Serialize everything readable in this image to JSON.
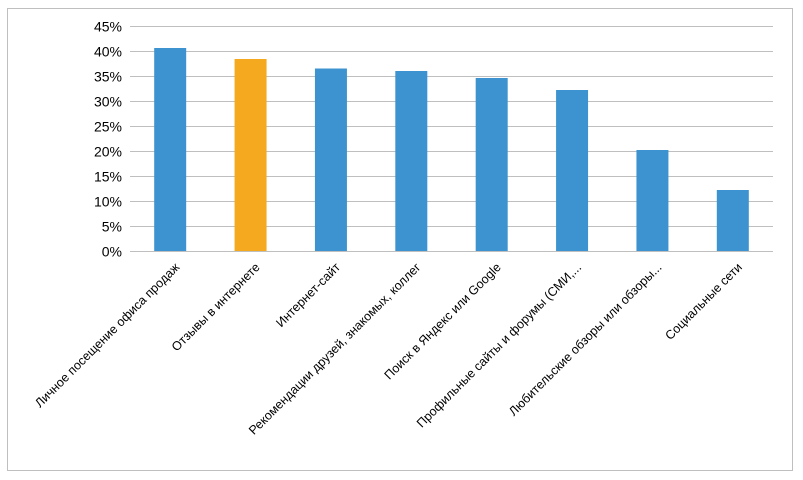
{
  "chart_data": {
    "type": "bar",
    "title": "",
    "xlabel": "",
    "ylabel": "",
    "ylim": [
      0,
      45
    ],
    "y_tick_step": 5,
    "y_tick_format": "percent",
    "grid": true,
    "legend": "none",
    "categories": [
      "Личное посещение офиса продаж",
      "Отзывы в интернете",
      "Интернет-сайт",
      "Рекомендации друзей, знакомых, коллег",
      "Поиск в Яндекс или Google",
      "Профильные сайты и форумы (СМИ,...",
      "Любительские обзоры или обзоры...",
      "Социальные сети"
    ],
    "values": [
      40.6,
      38.4,
      36.5,
      36.0,
      34.6,
      32.2,
      20.2,
      12.2
    ],
    "highlight_index": 1,
    "colors": {
      "bar": "#3d93d0",
      "highlight": "#f5a91f",
      "grid": "#bfbfbf"
    }
  }
}
